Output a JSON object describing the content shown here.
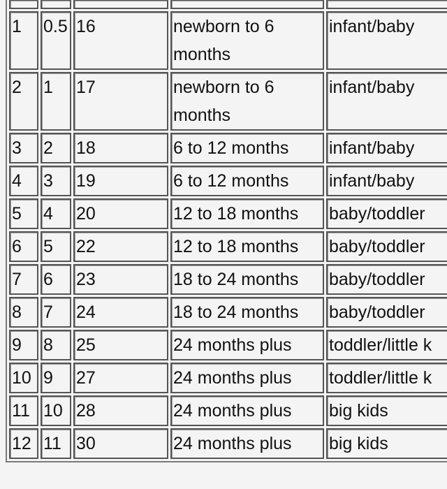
{
  "rows": [
    {
      "c1": "1",
      "c2": "0.5",
      "c3": "16",
      "c4": "newborn to 6 months",
      "c5": "infant/baby"
    },
    {
      "c1": "2",
      "c2": "1",
      "c3": "17",
      "c4": "newborn to 6 months",
      "c5": "infant/baby"
    },
    {
      "c1": "3",
      "c2": "2",
      "c3": "18",
      "c4": "6 to 12 months",
      "c5": "infant/baby"
    },
    {
      "c1": "4",
      "c2": "3",
      "c3": "19",
      "c4": "6 to 12 months",
      "c5": "infant/baby"
    },
    {
      "c1": "5",
      "c2": "4",
      "c3": "20",
      "c4": "12 to 18 months",
      "c5": "baby/toddler"
    },
    {
      "c1": "6",
      "c2": "5",
      "c3": "22",
      "c4": "12 to 18 months",
      "c5": "baby/toddler"
    },
    {
      "c1": "7",
      "c2": "6",
      "c3": "23",
      "c4": "18 to 24 months",
      "c5": "baby/toddler"
    },
    {
      "c1": "8",
      "c2": "7",
      "c3": "24",
      "c4": "18 to 24 months",
      "c5": "baby/toddler"
    },
    {
      "c1": "9",
      "c2": "8",
      "c3": "25",
      "c4": "24 months plus",
      "c5": "toddler/little k"
    },
    {
      "c1": "10",
      "c2": "9",
      "c3": "27",
      "c4": "24 months plus",
      "c5": "toddler/little k"
    },
    {
      "c1": "11",
      "c2": "10",
      "c3": "28",
      "c4": "24 months plus",
      "c5": "big kids"
    },
    {
      "c1": "12",
      "c2": "11",
      "c3": "30",
      "c4": "24 months plus",
      "c5": "big kids"
    }
  ]
}
